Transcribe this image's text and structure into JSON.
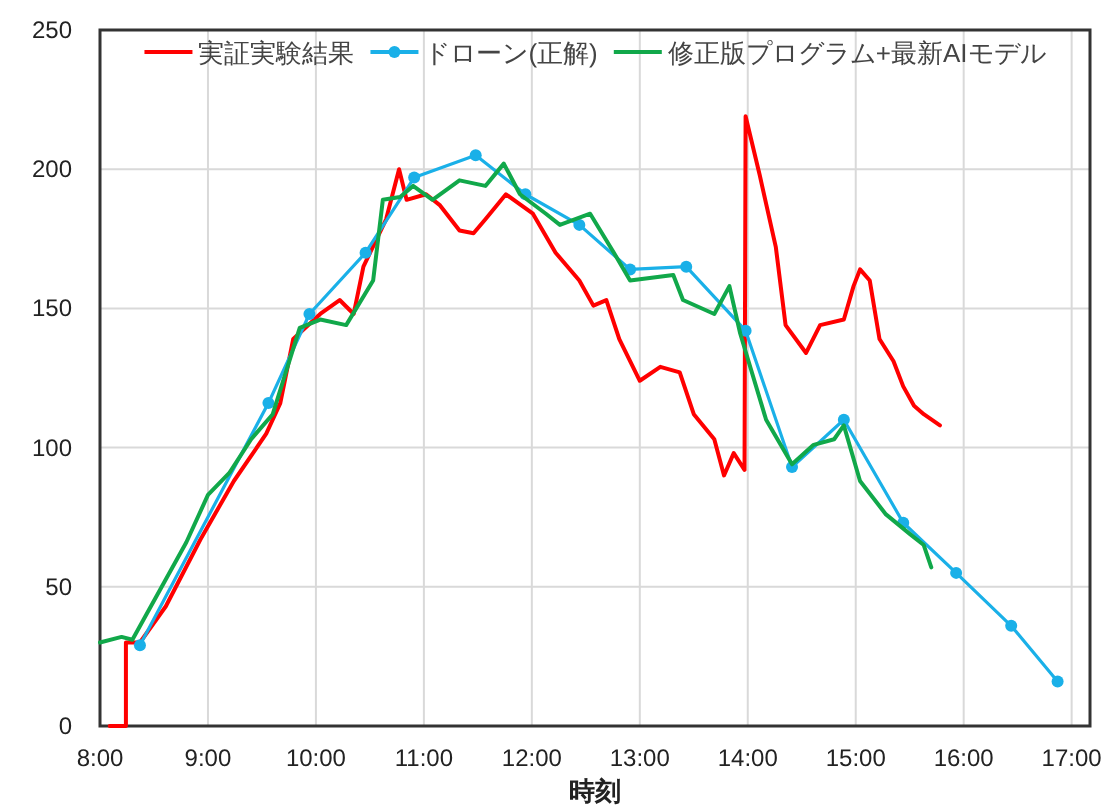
{
  "chart_data": {
    "type": "line",
    "xlabel": "時刻",
    "xlim": [
      8,
      17.17
    ],
    "ylim": [
      0,
      250
    ],
    "xticks": [
      {
        "value": 8,
        "label": "8:00"
      },
      {
        "value": 9,
        "label": "9:00"
      },
      {
        "value": 10,
        "label": "10:00"
      },
      {
        "value": 11,
        "label": "11:00"
      },
      {
        "value": 12,
        "label": "12:00"
      },
      {
        "value": 13,
        "label": "13:00"
      },
      {
        "value": 14,
        "label": "14:00"
      },
      {
        "value": 15,
        "label": "15:00"
      },
      {
        "value": 16,
        "label": "16:00"
      },
      {
        "value": 17,
        "label": "17:00"
      }
    ],
    "yticks": [
      0,
      50,
      100,
      150,
      200,
      250
    ],
    "grid": true,
    "legend": "top",
    "series": [
      {
        "name": "実証実験結果",
        "color": "#ff0000",
        "marker": "none",
        "x": [
          8.09,
          8.24,
          8.24,
          8.37,
          8.61,
          8.93,
          9.24,
          9.54,
          9.67,
          9.79,
          10.04,
          10.22,
          10.35,
          10.44,
          10.65,
          10.77,
          10.84,
          11.02,
          11.15,
          11.33,
          11.46,
          11.57,
          11.76,
          12.01,
          12.22,
          12.44,
          12.57,
          12.69,
          12.81,
          13.0,
          13.19,
          13.37,
          13.5,
          13.69,
          13.78,
          13.87,
          13.97,
          13.98,
          14.11,
          14.26,
          14.35,
          14.54,
          14.67,
          14.89,
          14.98,
          15.04,
          15.13,
          15.22,
          15.35,
          15.44,
          15.54,
          15.63,
          15.78
        ],
        "values": [
          0,
          0,
          30,
          30,
          43,
          67,
          88,
          105,
          116,
          139,
          148,
          153,
          148,
          165,
          182,
          200,
          189,
          191,
          187,
          178,
          177,
          182,
          191,
          184,
          170,
          160,
          151,
          153,
          139,
          124,
          129,
          127,
          112,
          103,
          90,
          98,
          92,
          219,
          198,
          172,
          144,
          134,
          144,
          146,
          158,
          164,
          160,
          139,
          131,
          122,
          115,
          112,
          108
        ]
      },
      {
        "name": "ドローン(正解)",
        "color": "#1ab0e8",
        "marker": "circle",
        "x": [
          8.37,
          9.56,
          9.94,
          10.46,
          10.91,
          11.48,
          11.94,
          12.44,
          12.91,
          13.43,
          13.98,
          14.41,
          14.89,
          15.44,
          15.93,
          16.44,
          16.87
        ],
        "values": [
          29,
          116,
          148,
          170,
          197,
          205,
          191,
          180,
          164,
          165,
          142,
          93,
          110,
          73,
          55,
          36,
          16
        ]
      },
      {
        "name": "修正版プログラム+最新AIモデル",
        "color": "#11a84a",
        "marker": "none",
        "x": [
          8.0,
          8.2,
          8.3,
          8.4,
          8.6,
          8.8,
          9.0,
          9.2,
          9.4,
          9.6,
          9.85,
          10.04,
          10.28,
          10.53,
          10.62,
          10.78,
          10.9,
          11.08,
          11.33,
          11.57,
          11.74,
          11.89,
          12.13,
          12.26,
          12.54,
          12.76,
          12.91,
          13.31,
          13.4,
          13.69,
          13.83,
          13.93,
          14.17,
          14.41,
          14.61,
          14.8,
          14.89,
          15.04,
          15.28,
          15.5,
          15.63,
          15.7
        ],
        "values": [
          30,
          32,
          31,
          38,
          52,
          66,
          83,
          91,
          103,
          112,
          143,
          146,
          144,
          160,
          189,
          190,
          194,
          189,
          196,
          194,
          202,
          191,
          184,
          180,
          184,
          170,
          160,
          162,
          153,
          148,
          158,
          141,
          110,
          94,
          101,
          103,
          108,
          88,
          76,
          69,
          65,
          57
        ]
      }
    ]
  }
}
